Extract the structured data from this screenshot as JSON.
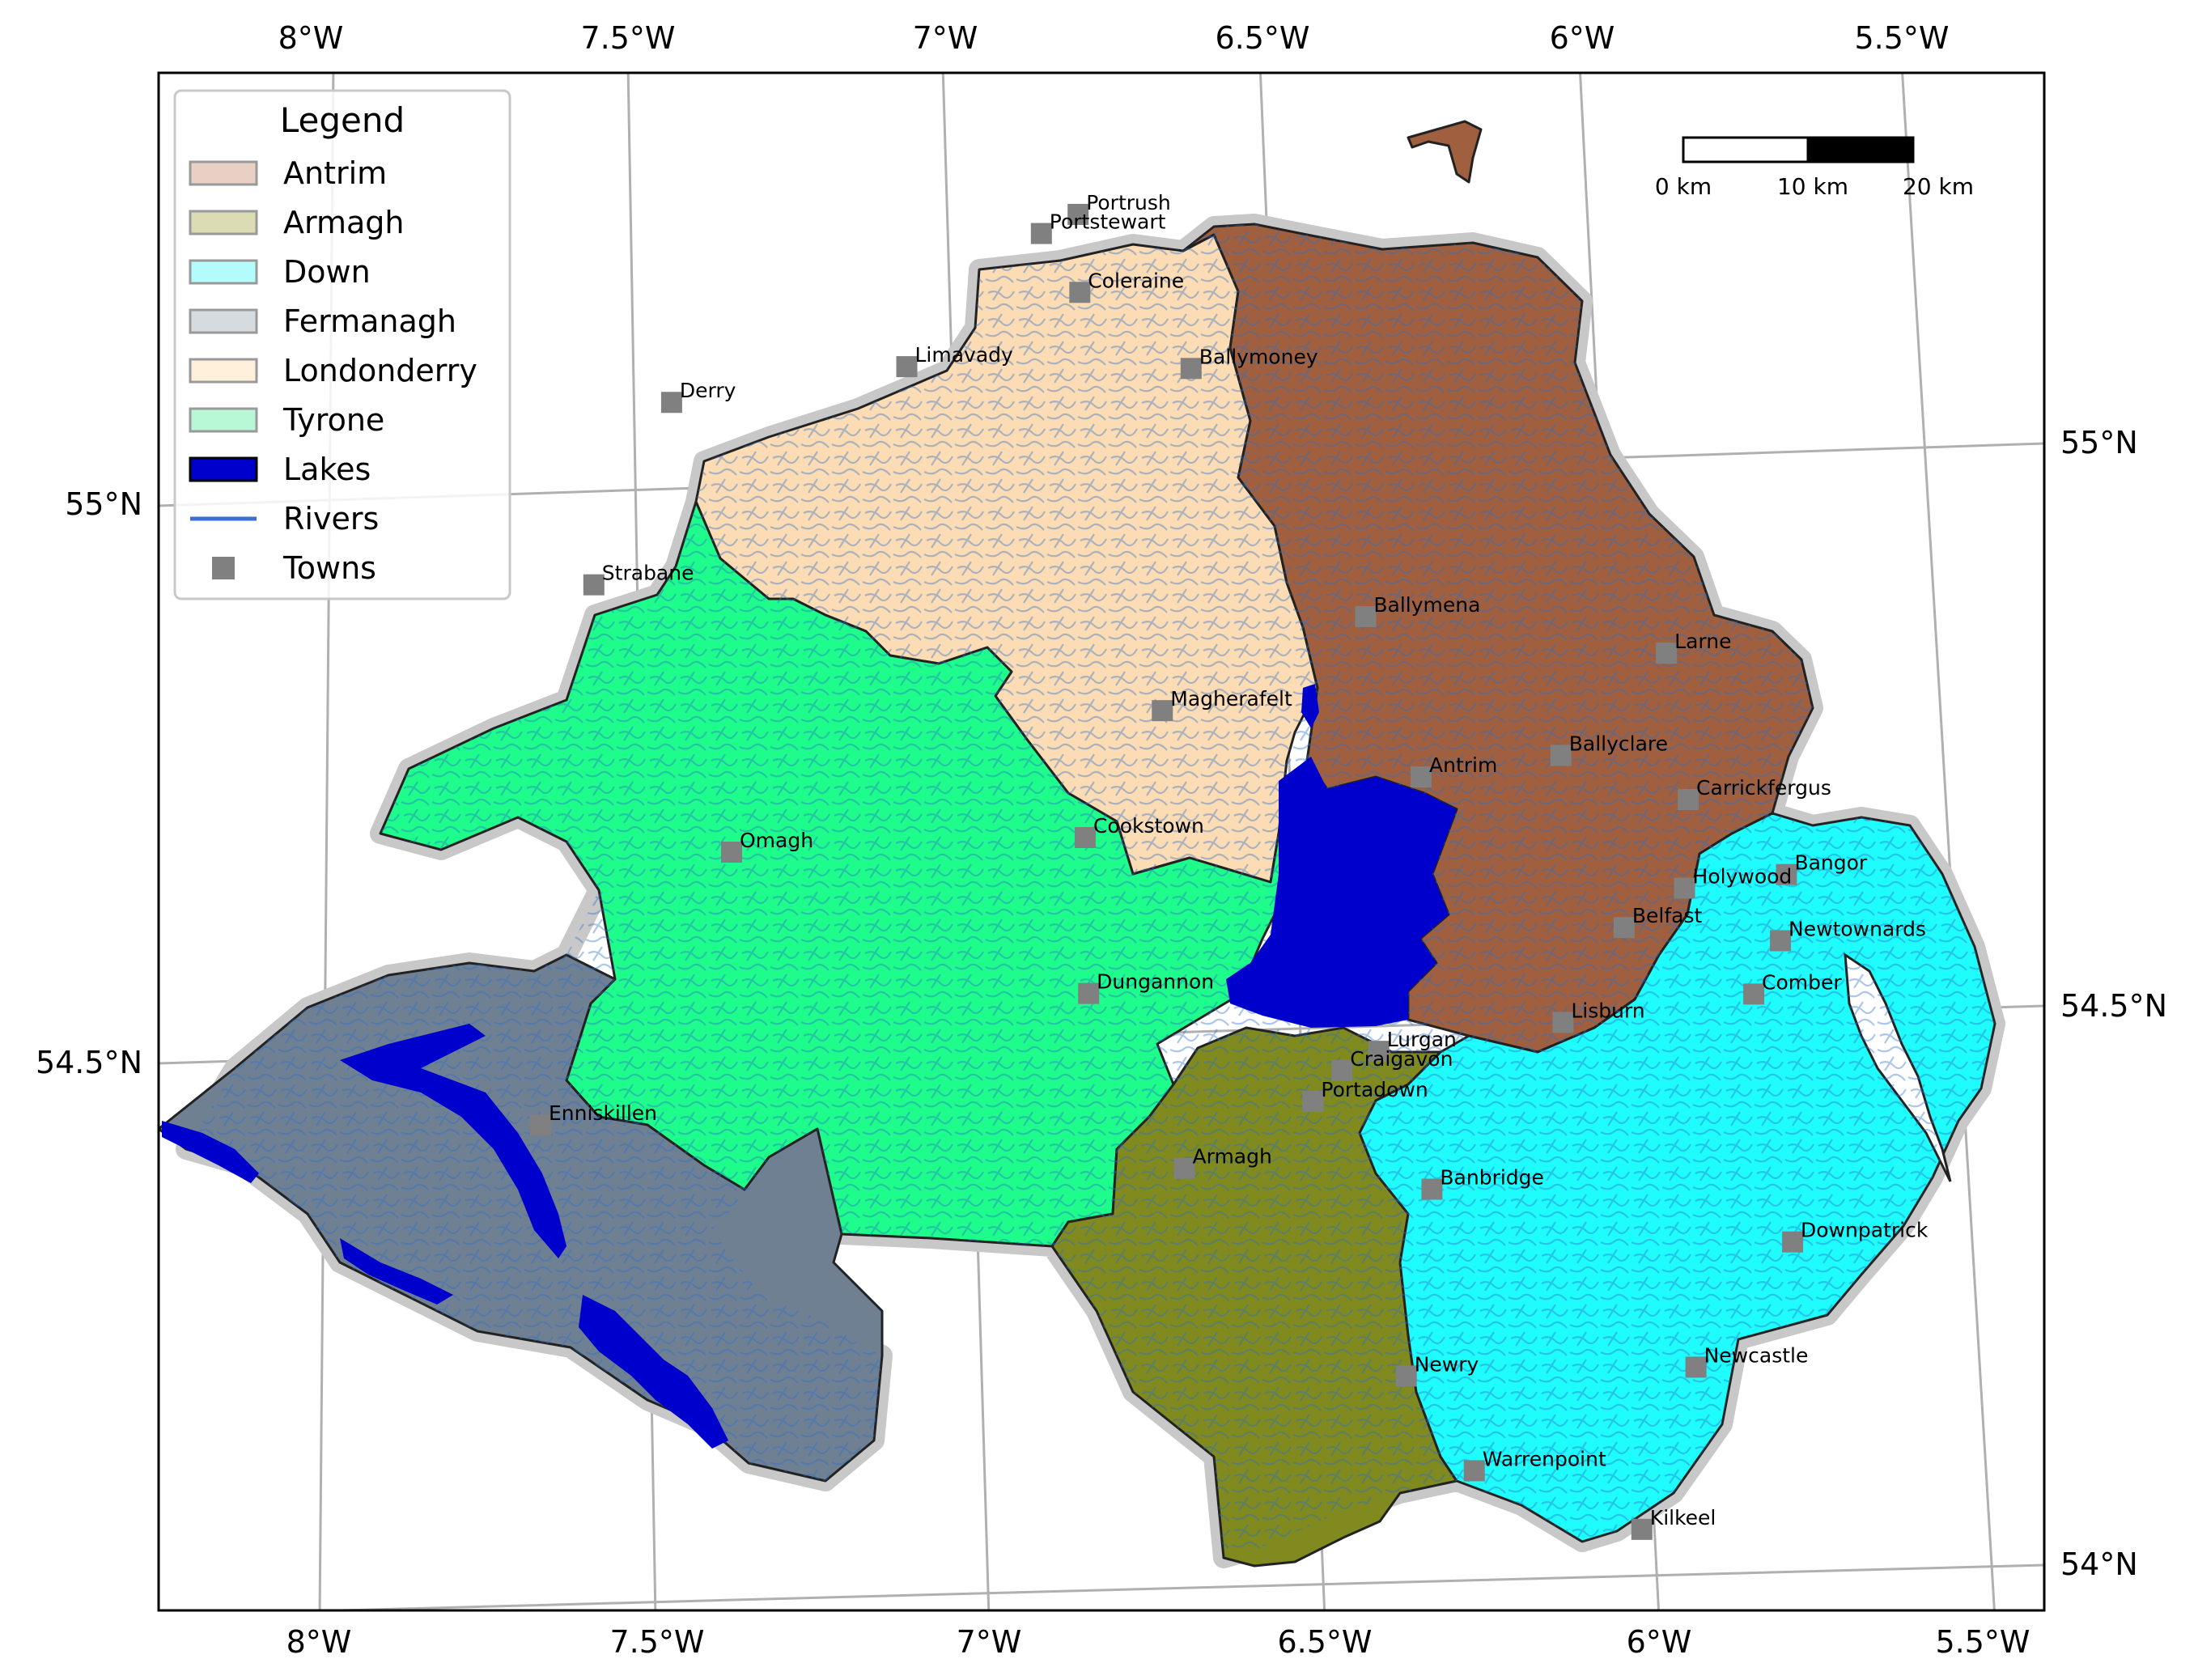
{
  "map": {
    "lon_labels": [
      "8°W",
      "7.5°W",
      "7°W",
      "6.5°W",
      "6°W",
      "5.5°W"
    ],
    "lat_labels": [
      "55°N",
      "54.5°N",
      "54°N"
    ]
  },
  "legend": {
    "title": "Legend",
    "items": [
      {
        "label": "Antrim",
        "kind": "patch",
        "color": "#e8d0c4"
      },
      {
        "label": "Armagh",
        "kind": "patch",
        "color": "#dcdcb4"
      },
      {
        "label": "Down",
        "kind": "patch",
        "color": "#b4fcfc"
      },
      {
        "label": "Fermanagh",
        "kind": "patch",
        "color": "#d6dbe0"
      },
      {
        "label": "Londonderry",
        "kind": "patch",
        "color": "#fff0dc"
      },
      {
        "label": "Tyrone",
        "kind": "patch",
        "color": "#b8f8d6"
      },
      {
        "label": "Lakes",
        "kind": "patch",
        "color": "#0000cd"
      },
      {
        "label": "Rivers",
        "kind": "line",
        "color": "#3b6fd6"
      },
      {
        "label": "Towns",
        "kind": "marker",
        "color": "#808080"
      }
    ]
  },
  "scale_bar": {
    "labels": [
      "0 km",
      "10 km",
      "20 km"
    ]
  },
  "counties": {
    "antrim": {
      "name": "Antrim",
      "color": "#a0603f"
    },
    "armagh": {
      "name": "Armagh",
      "color": "#808a1e"
    },
    "down": {
      "name": "Down",
      "color": "#1ffcfc"
    },
    "fermanagh": {
      "name": "Fermanagh",
      "color": "#708093"
    },
    "londonderry": {
      "name": "Londonderry",
      "color": "#fcdcb4"
    },
    "tyrone": {
      "name": "Tyrone",
      "color": "#1efc8c"
    }
  },
  "lakes_color": "#0000cd",
  "rivers_color": "#2a6fc9",
  "towns": [
    {
      "name": "Portrush",
      "lon": -6.66,
      "lat": 55.2
    },
    {
      "name": "Portstewart",
      "lon": -6.72,
      "lat": 55.18
    },
    {
      "name": "Coleraine",
      "lon": -6.67,
      "lat": 55.13
    },
    {
      "name": "Ballymoney",
      "lon": -6.51,
      "lat": 55.07
    },
    {
      "name": "Limavady",
      "lon": -6.95,
      "lat": 55.05
    },
    {
      "name": "Derry",
      "lon": -7.32,
      "lat": 55.0
    },
    {
      "name": "Ballymena",
      "lon": -6.28,
      "lat": 54.86
    },
    {
      "name": "Larne",
      "lon": -5.82,
      "lat": 54.85
    },
    {
      "name": "Strabane",
      "lon": -7.47,
      "lat": 54.83
    },
    {
      "name": "Ballyclare",
      "lon": -6.0,
      "lat": 54.75
    },
    {
      "name": "Magherafelt",
      "lon": -6.61,
      "lat": 54.76
    },
    {
      "name": "Antrim",
      "lon": -6.22,
      "lat": 54.72
    },
    {
      "name": "Carrickfergus",
      "lon": -5.81,
      "lat": 54.72
    },
    {
      "name": "Bangor",
      "lon": -5.67,
      "lat": 54.66
    },
    {
      "name": "Holywood",
      "lon": -5.83,
      "lat": 54.64
    },
    {
      "name": "Cookstown",
      "lon": -6.75,
      "lat": 54.64
    },
    {
      "name": "Belfast",
      "lon": -5.93,
      "lat": 54.6
    },
    {
      "name": "Newtownards",
      "lon": -5.69,
      "lat": 54.6
    },
    {
      "name": "Omagh",
      "lon": -7.3,
      "lat": 54.6
    },
    {
      "name": "Comber",
      "lon": -5.74,
      "lat": 54.55
    },
    {
      "name": "Lisburn",
      "lon": -6.04,
      "lat": 54.51
    },
    {
      "name": "Dungannon",
      "lon": -6.77,
      "lat": 54.5
    },
    {
      "name": "Lurgan",
      "lon": -6.33,
      "lat": 54.47
    },
    {
      "name": "Craigavon",
      "lon": -6.39,
      "lat": 54.45
    },
    {
      "name": "Portadown",
      "lon": -6.44,
      "lat": 54.42
    },
    {
      "name": "Banbridge",
      "lon": -6.27,
      "lat": 54.35
    },
    {
      "name": "Armagh",
      "lon": -6.65,
      "lat": 54.35
    },
    {
      "name": "Downpatrick",
      "lon": -5.72,
      "lat": 54.33
    },
    {
      "name": "Enniskillen",
      "lon": -7.64,
      "lat": 54.34
    },
    {
      "name": "Newcastle",
      "lon": -5.89,
      "lat": 54.21
    },
    {
      "name": "Newry",
      "lon": -6.34,
      "lat": 54.18
    },
    {
      "name": "Warrenpoint",
      "lon": -6.25,
      "lat": 54.1
    },
    {
      "name": "Kilkeel",
      "lon": -6.0,
      "lat": 54.06
    }
  ]
}
